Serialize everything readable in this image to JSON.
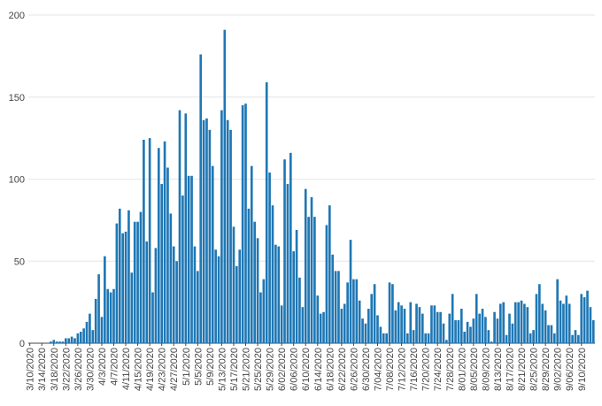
{
  "chart_data": {
    "type": "bar",
    "start_date": "2020-03-10",
    "values": [
      0,
      0,
      0,
      0,
      0,
      0,
      0,
      1,
      2,
      1,
      1,
      1,
      3,
      3,
      4,
      3,
      6,
      7,
      9,
      13,
      18,
      8,
      27,
      42,
      16,
      53,
      33,
      31,
      33,
      73,
      82,
      67,
      68,
      81,
      43,
      74,
      74,
      80,
      124,
      62,
      125,
      31,
      58,
      119,
      97,
      123,
      107,
      79,
      59,
      50,
      142,
      90,
      140,
      102,
      102,
      59,
      44,
      176,
      136,
      137,
      130,
      108,
      57,
      53,
      142,
      191,
      136,
      130,
      71,
      47,
      57,
      145,
      146,
      82,
      108,
      74,
      64,
      31,
      39,
      159,
      104,
      84,
      60,
      59,
      23,
      112,
      97,
      116,
      56,
      69,
      40,
      22,
      94,
      77,
      89,
      77,
      29,
      18,
      19,
      72,
      84,
      54,
      44,
      44,
      21,
      24,
      37,
      63,
      39,
      39,
      26,
      15,
      12,
      21,
      30,
      36,
      17,
      10,
      6,
      6,
      37,
      36,
      20,
      25,
      23,
      21,
      6,
      25,
      8,
      24,
      22,
      18,
      6,
      6,
      23,
      23,
      19,
      19,
      12,
      2,
      18,
      30,
      14,
      14,
      21,
      7,
      13,
      10,
      15,
      30,
      18,
      21,
      16,
      8,
      1,
      19,
      15,
      24,
      25,
      5,
      18,
      12,
      25,
      25,
      26,
      24,
      22,
      6,
      8,
      30,
      36,
      24,
      20,
      11,
      11,
      6,
      39,
      26,
      24,
      29,
      24,
      5,
      8,
      5,
      30,
      28,
      32,
      22,
      14
    ],
    "x_tick_labels": [
      "3/10/2020",
      "3/14/2020",
      "3/18/2020",
      "3/22/2020",
      "3/26/2020",
      "3/30/2020",
      "4/3/2020",
      "4/7/2020",
      "4/11/2020",
      "4/15/2020",
      "4/19/2020",
      "4/23/2020",
      "4/27/2020",
      "5/1/2020",
      "5/5/2020",
      "5/9/2020",
      "5/13/2020",
      "5/17/2020",
      "5/21/2020",
      "5/25/2020",
      "5/29/2020",
      "6/02/2020",
      "6/06/2020",
      "6/10/2020",
      "6/14/2020",
      "6/18/2020",
      "6/22/2020",
      "6/26/2020",
      "6/30/2020",
      "7/04/2020",
      "7/08/2020",
      "7/12/2020",
      "7/16/2020",
      "7/20/2020",
      "7/24/2020",
      "7/28/2020",
      "8/01/2020",
      "8/05/2020",
      "8/09/2020",
      "8/13/2020",
      "8/17/2020",
      "8/21/2020",
      "8/25/2020",
      "8/29/2020",
      "9/02/2020",
      "9/06/2020",
      "9/10/2020"
    ],
    "x_tick_every_days": 4,
    "y_ticks": [
      0,
      50,
      100,
      150,
      200
    ],
    "ylim": [
      0,
      200
    ],
    "grid": true,
    "bar_color": "#1f77b4"
  }
}
